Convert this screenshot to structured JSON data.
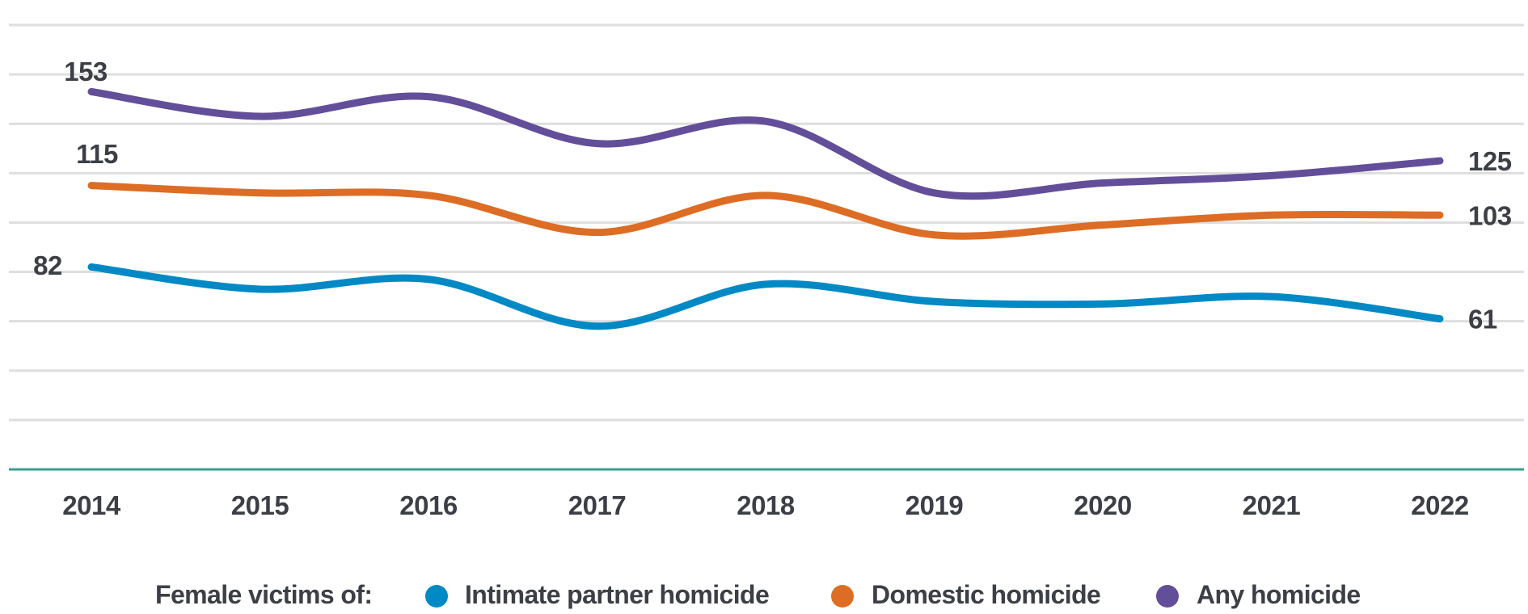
{
  "chart_data": {
    "type": "line",
    "title": "",
    "xlabel": "",
    "ylabel": "",
    "x": [
      "2014",
      "2015",
      "2016",
      "2017",
      "2018",
      "2019",
      "2020",
      "2021",
      "2022"
    ],
    "ylim": [
      0,
      180
    ],
    "y_grid_step": 20,
    "grid": true,
    "legend_position": "bottom",
    "series": [
      {
        "key": "any",
        "name": "Any homicide",
        "color": "#634e9a",
        "values": [
          153,
          143,
          151,
          132,
          141,
          112,
          116,
          119,
          125
        ],
        "start_label": "153",
        "end_label": "125"
      },
      {
        "key": "domestic",
        "name": "Domestic homicide",
        "color": "#dd6d25",
        "values": [
          115,
          112,
          111,
          96,
          111,
          95,
          99,
          103,
          103
        ],
        "start_label": "115",
        "end_label": "103"
      },
      {
        "key": "intimate",
        "name": "Intimate partner homicide",
        "color": "#0089c4",
        "values": [
          82,
          73,
          77,
          58,
          75,
          68,
          67,
          70,
          61
        ],
        "start_label": "82",
        "end_label": "61"
      }
    ],
    "legend": {
      "title": "Female victims of:",
      "items": [
        {
          "label": "Intimate partner homicide",
          "color": "#0089c4"
        },
        {
          "label": "Domestic homicide",
          "color": "#dd6d25"
        },
        {
          "label": "Any homicide",
          "color": "#634e9a"
        }
      ]
    },
    "axis_color": "#3a9c94",
    "grid_color": "#dedede",
    "text_color": "#3d3f47"
  }
}
